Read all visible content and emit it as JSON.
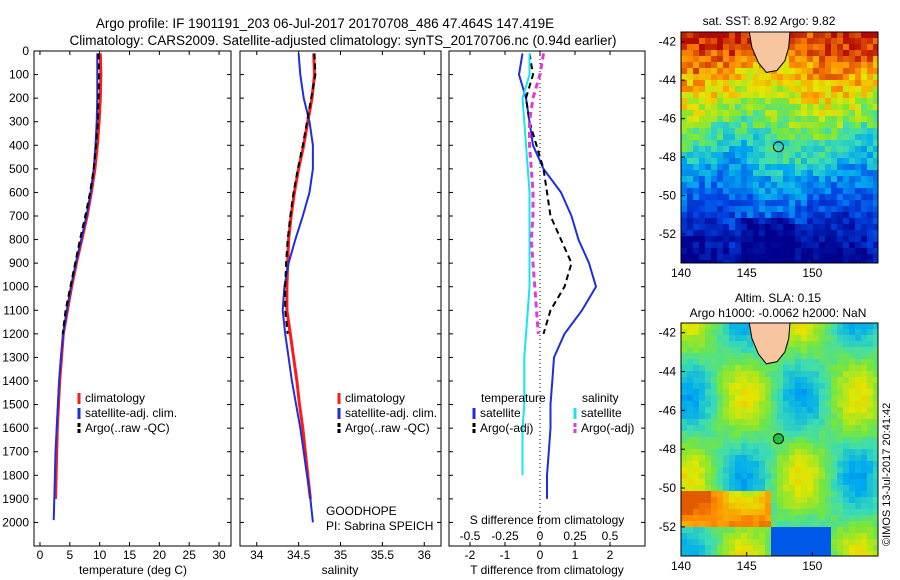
{
  "header": {
    "title_line1": "Argo profile: IF 1901191_203 06-Jul-2017 20170708_486 47.464S 147.419E",
    "title_line2": "Climatology: CARS2009. Satellite-adjusted climatology: synTS_20170706.nc (0.94d earlier)"
  },
  "colors": {
    "climatology": "#ff1a1a",
    "satellite": "#1f2ddf",
    "argo": "#000000",
    "satellite_s": "#16e6f0",
    "argo_s": "#e23ad8",
    "land": "#f7c6a0"
  },
  "chart_data": [
    {
      "type": "line",
      "panel": "temperature",
      "xlabel": "temperature (deg C)",
      "xlim": [
        -1,
        32
      ],
      "xticks": [
        "0",
        "5",
        "10",
        "15",
        "20",
        "25",
        "30"
      ],
      "xtick_values": [
        0,
        5,
        10,
        15,
        20,
        25,
        30
      ],
      "ylim": [
        0,
        2100
      ],
      "yticks": [
        "0",
        "100",
        "200",
        "300",
        "400",
        "500",
        "600",
        "700",
        "800",
        "900",
        "1000",
        "1100",
        "1200",
        "1300",
        "1400",
        "1500",
        "1600",
        "1700",
        "1800",
        "1900",
        "2000"
      ],
      "ytick_values": [
        0,
        100,
        200,
        300,
        400,
        500,
        600,
        700,
        800,
        900,
        1000,
        1100,
        1200,
        1300,
        1400,
        1500,
        1600,
        1700,
        1800,
        1900,
        2000
      ],
      "series": [
        {
          "name": "climatology",
          "color": "#ff1a1a",
          "dash": "",
          "width": 3,
          "x": [
            10.1,
            10.2,
            10.1,
            9.9,
            9.6,
            9.2,
            8.6,
            7.9,
            7.0,
            6.1,
            5.3,
            4.6,
            3.9,
            3.6,
            3.3,
            3.1,
            2.9,
            2.8,
            2.7,
            2.6
          ],
          "y": [
            10,
            100,
            200,
            300,
            400,
            500,
            600,
            700,
            800,
            900,
            1000,
            1100,
            1200,
            1300,
            1400,
            1500,
            1600,
            1700,
            1800,
            1900
          ]
        },
        {
          "name": "satellite-adj. clim.",
          "color": "#1f2ddf",
          "dash": "",
          "width": 2,
          "x": [
            9.6,
            9.6,
            9.6,
            9.5,
            9.3,
            9.0,
            8.5,
            7.8,
            6.9,
            6.0,
            5.2,
            4.5,
            3.9,
            3.5,
            3.2,
            3.0,
            2.8,
            2.6,
            2.5,
            2.4,
            2.3
          ],
          "y": [
            10,
            100,
            200,
            300,
            400,
            500,
            600,
            700,
            800,
            900,
            1000,
            1100,
            1200,
            1300,
            1400,
            1500,
            1600,
            1700,
            1800,
            1900,
            1990
          ]
        },
        {
          "name": "Argo(..raw -QC)",
          "color": "#000000",
          "dash": "6,4",
          "width": 2,
          "x": [
            9.8,
            9.9,
            9.8,
            9.7,
            9.4,
            9.0,
            8.4,
            7.6,
            6.7,
            5.9,
            5.1,
            4.3,
            3.8
          ],
          "y": [
            10,
            100,
            200,
            300,
            400,
            500,
            600,
            700,
            800,
            900,
            1000,
            1100,
            1200
          ]
        }
      ],
      "legend": [
        "climatology",
        "satellite-adj. clim.",
        "Argo(..raw -QC)"
      ]
    },
    {
      "type": "line",
      "panel": "salinity",
      "xlabel": "salinity",
      "xlim": [
        33.8,
        36.2
      ],
      "xticks": [
        "34",
        "34.5",
        "35",
        "35.5",
        "36"
      ],
      "xtick_values": [
        34,
        34.5,
        35,
        35.5,
        36
      ],
      "ylim": [
        0,
        2100
      ],
      "series": [
        {
          "name": "climatology",
          "color": "#ff1a1a",
          "dash": "",
          "width": 3,
          "x": [
            34.68,
            34.69,
            34.66,
            34.61,
            34.56,
            34.5,
            34.45,
            34.41,
            34.38,
            34.37,
            34.36,
            34.36,
            34.4,
            34.44,
            34.48,
            34.51,
            34.55,
            34.58,
            34.61,
            34.64
          ],
          "y": [
            10,
            100,
            200,
            300,
            400,
            500,
            600,
            700,
            800,
            900,
            1000,
            1100,
            1200,
            1300,
            1400,
            1500,
            1600,
            1700,
            1800,
            1900
          ]
        },
        {
          "name": "satellite-adj. clim.",
          "color": "#1f2ddf",
          "dash": "",
          "width": 2,
          "x": [
            34.5,
            34.52,
            34.56,
            34.63,
            34.67,
            34.67,
            34.63,
            34.55,
            34.46,
            34.38,
            34.33,
            34.31,
            34.34,
            34.38,
            34.42,
            34.47,
            34.52,
            34.56,
            34.6,
            34.64,
            34.67
          ],
          "y": [
            10,
            100,
            200,
            300,
            400,
            500,
            600,
            700,
            800,
            900,
            1000,
            1100,
            1200,
            1300,
            1400,
            1500,
            1600,
            1700,
            1800,
            1900,
            2000
          ]
        },
        {
          "name": "Argo(..raw -QC)",
          "color": "#000000",
          "dash": "6,4",
          "width": 2,
          "x": [
            34.69,
            34.7,
            34.65,
            34.6,
            34.55,
            34.49,
            34.44,
            34.4,
            34.37,
            34.35,
            34.34,
            34.34,
            34.37
          ],
          "y": [
            10,
            100,
            200,
            300,
            400,
            500,
            600,
            700,
            800,
            900,
            1000,
            1100,
            1200
          ]
        }
      ],
      "legend": [
        "climatology",
        "satellite-adj. clim.",
        "Argo(..raw -QC)"
      ],
      "annotations": [
        "GOODHOPE",
        "PI: Sabrina SPEICH"
      ]
    },
    {
      "type": "line",
      "panel": "differences",
      "xlabel": "T difference from climatology",
      "xlabel_top": "S difference from climatology",
      "xlim": [
        -2.6,
        3.0
      ],
      "xticks": [
        "-2",
        "-1",
        "0",
        "1",
        "2"
      ],
      "xtick_values": [
        -2,
        -1,
        0,
        1,
        2
      ],
      "xticks_s": [
        "-0.5",
        "-0.25",
        "0",
        "0.25",
        "0.5"
      ],
      "xtick_s_values": [
        -0.5,
        -0.25,
        0,
        0.25,
        0.5
      ],
      "ylim": [
        0,
        2100
      ],
      "series": [
        {
          "name": "temperature satellite",
          "color": "#1f2ddf",
          "dash": "",
          "width": 2,
          "x": [
            -0.5,
            -0.6,
            -0.4,
            -0.3,
            -0.2,
            0.1,
            0.6,
            0.9,
            1.1,
            1.4,
            1.6,
            1.2,
            0.7,
            0.4,
            0.35,
            0.3,
            0.3,
            0.25,
            0.2,
            0.2
          ],
          "y": [
            10,
            100,
            200,
            300,
            400,
            500,
            600,
            700,
            800,
            900,
            1000,
            1100,
            1200,
            1300,
            1400,
            1500,
            1600,
            1700,
            1800,
            1900
          ]
        },
        {
          "name": "temperature Argo(-adj)",
          "color": "#000000",
          "dash": "6,4",
          "width": 2,
          "x": [
            -0.3,
            -0.2,
            -0.4,
            -0.3,
            -0.1,
            0.1,
            0.2,
            0.3,
            0.6,
            0.9,
            0.7,
            0.3,
            0.1
          ],
          "y": [
            10,
            100,
            200,
            300,
            400,
            500,
            600,
            700,
            800,
            900,
            1000,
            1100,
            1200
          ]
        },
        {
          "name": "salinity satellite",
          "color": "#16e6f0",
          "dash": "",
          "width": 2,
          "x": [
            -0.3,
            -0.3,
            -0.5,
            -0.45,
            -0.4,
            -0.35,
            -0.3,
            -0.3,
            -0.3,
            -0.3,
            -0.3,
            -0.35,
            -0.4,
            -0.45,
            -0.45,
            -0.45,
            -0.5,
            -0.5,
            -0.5
          ],
          "y": [
            10,
            100,
            200,
            300,
            400,
            500,
            600,
            700,
            800,
            900,
            1000,
            1100,
            1200,
            1300,
            1400,
            1500,
            1600,
            1700,
            1800
          ]
        },
        {
          "name": "salinity Argo(-adj)",
          "color": "#e23ad8",
          "dash": "6,4",
          "width": 3,
          "x": [
            0.1,
            0.0,
            -0.2,
            -0.3,
            -0.3,
            -0.25,
            -0.2,
            -0.2,
            -0.25,
            -0.2,
            -0.15,
            -0.1,
            -0.05
          ],
          "y": [
            10,
            100,
            200,
            300,
            400,
            500,
            600,
            700,
            800,
            900,
            1000,
            1100,
            1200
          ]
        }
      ],
      "legend_headers": [
        "temperature",
        "salinity"
      ],
      "legend_left": [
        "satellite",
        "Argo(-adj)"
      ],
      "legend_right": [
        "satellite",
        "Argo(-adj)"
      ]
    },
    {
      "type": "heatmap",
      "panel": "sst_map",
      "title": "sat. SST: 8.92  Argo: 9.82",
      "xlim": [
        140,
        155
      ],
      "ylim": [
        -53.5,
        -41.5
      ],
      "xticks": [
        "140",
        "145",
        "150"
      ],
      "xtick_values": [
        140,
        145,
        150
      ],
      "yticks": [
        "-42",
        "-44",
        "-46",
        "-48",
        "-50",
        "-52"
      ],
      "ytick_values": [
        -42,
        -44,
        -46,
        -48,
        -50,
        -52
      ],
      "marker": {
        "lon": 147.42,
        "lat": -47.46
      }
    },
    {
      "type": "heatmap",
      "panel": "sla_map",
      "title_line1": "Altim. SLA: 0.15",
      "title_line2": "Argo h1000: -0.0062 h2000: NaN",
      "xlim": [
        140,
        155
      ],
      "ylim": [
        -53.5,
        -41.5
      ],
      "xticks": [
        "140",
        "145",
        "150"
      ],
      "xtick_values": [
        140,
        145,
        150
      ],
      "yticks": [
        "-42",
        "-44",
        "-46",
        "-48",
        "-50",
        "-52"
      ],
      "ytick_values": [
        -42,
        -44,
        -46,
        -48,
        -50,
        -52
      ],
      "marker": {
        "lon": 147.42,
        "lat": -47.46
      }
    }
  ],
  "footer": {
    "stamp": "©IMOS 13-Jul-2017 20:41:42"
  }
}
